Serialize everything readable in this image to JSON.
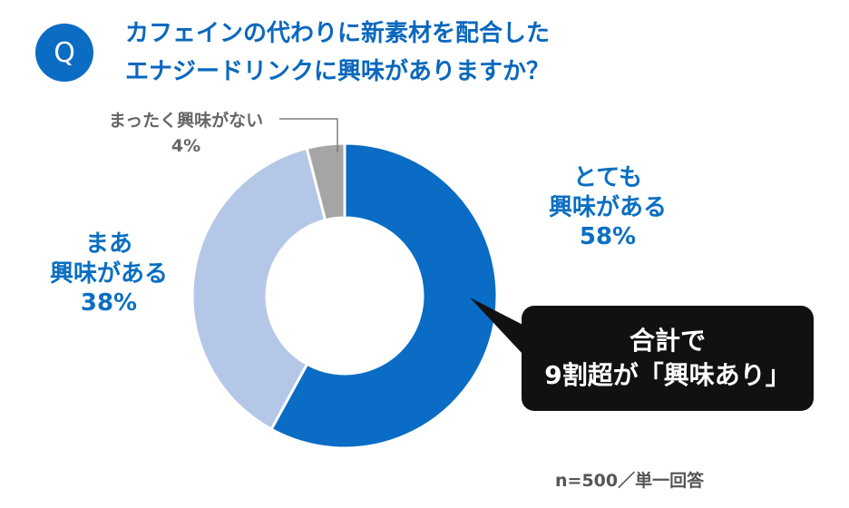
{
  "question": {
    "icon": "Q",
    "title_line1": "カフェインの代わりに新素材を配合した",
    "title_line2": "エナジードリンクに興味がありますか？"
  },
  "chart_data": {
    "type": "pie",
    "slices": [
      {
        "label_line1": "とても",
        "label_line2": "興味がある",
        "value": 58,
        "value_text": "58%",
        "color": "#0a6cc4"
      },
      {
        "label_line1": "まあ",
        "label_line2": "興味がある",
        "value": 38,
        "value_text": "38%",
        "color": "#b4c7e7"
      },
      {
        "label_line1": "まったく興味がない",
        "value": 4,
        "value_text": "4%",
        "color": "#a5a5a5"
      }
    ]
  },
  "callout": {
    "line1": "合計で",
    "line2": "9割超が「興味あり」"
  },
  "footnote": "n=500／単一回答"
}
